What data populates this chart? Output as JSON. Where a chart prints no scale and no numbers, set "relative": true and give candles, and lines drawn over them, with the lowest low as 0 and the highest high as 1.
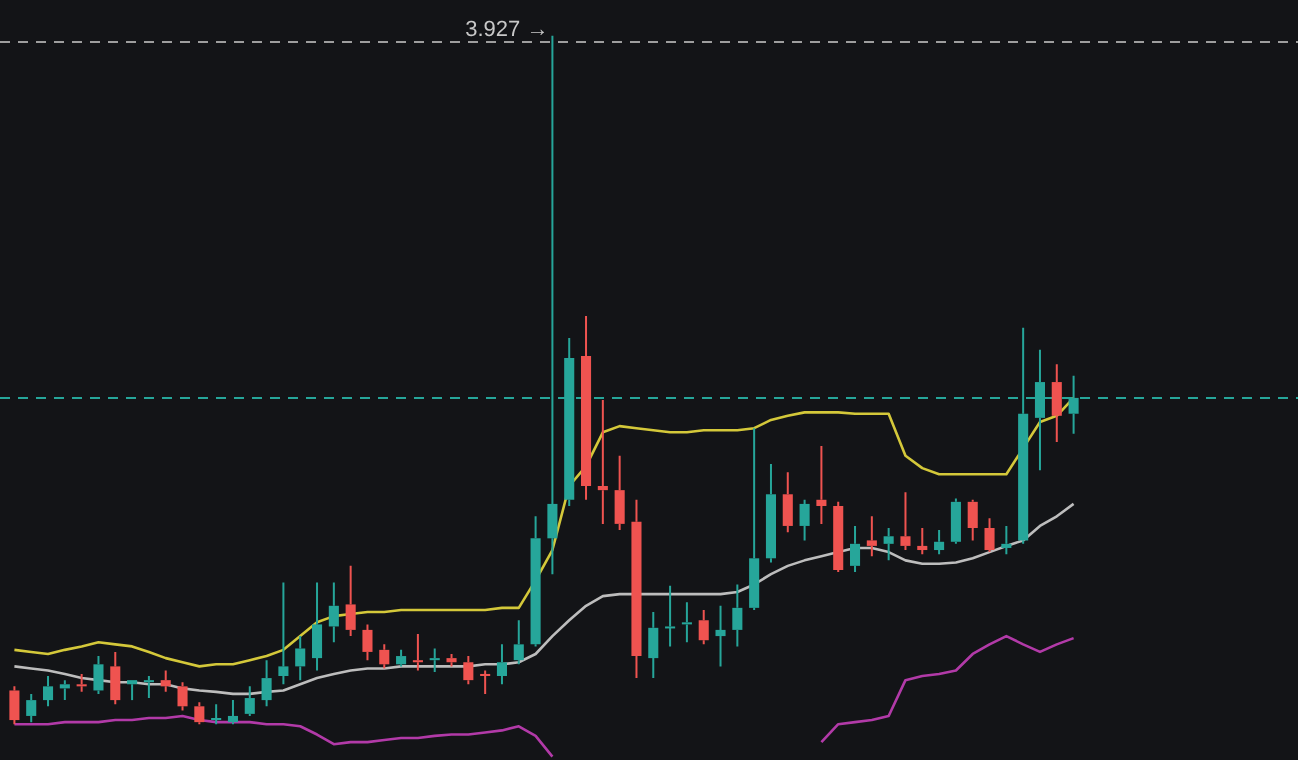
{
  "chart_data": {
    "type": "candlestick",
    "relative": true,
    "categories": [
      null,
      null,
      null,
      null,
      null,
      null,
      null,
      null,
      null,
      null,
      null,
      null,
      null,
      null,
      null,
      null,
      null,
      null,
      null,
      null,
      null,
      null,
      null,
      null,
      null,
      null,
      null,
      null,
      null,
      null,
      null,
      null,
      null,
      null,
      null,
      null,
      null,
      null,
      null,
      null,
      null,
      null,
      null,
      null,
      null,
      null,
      null,
      null,
      null,
      null,
      null,
      null,
      null,
      null,
      null,
      null,
      null,
      null,
      null,
      null,
      null,
      null,
      null,
      null
    ],
    "ohlc": [
      [
        0.049,
        0.055,
        0,
        0.006
      ],
      [
        0.012,
        0.044,
        0.003,
        0.035
      ],
      [
        0.035,
        0.07,
        0.026,
        0.055
      ],
      [
        0.052,
        0.064,
        0.035,
        0.058
      ],
      [
        0.058,
        0.073,
        0.047,
        0.055
      ],
      [
        0.049,
        0.099,
        0.044,
        0.087
      ],
      [
        0.084,
        0.105,
        0.029,
        0.035
      ],
      [
        0.058,
        0.064,
        0.035,
        0.064
      ],
      [
        0.061,
        0.07,
        0.038,
        0.064
      ],
      [
        0.064,
        0.078,
        0.047,
        0.055
      ],
      [
        0.055,
        0.061,
        0.02,
        0.026
      ],
      [
        0.026,
        0.032,
        0,
        0.003
      ],
      [
        0.006,
        0.029,
        0,
        0.009
      ],
      [
        0.003,
        0.035,
        0,
        0.012
      ],
      [
        0.015,
        0.055,
        0.012,
        0.038
      ],
      [
        0.035,
        0.093,
        0.026,
        0.067
      ],
      [
        0.07,
        0.206,
        0.058,
        0.084
      ],
      [
        0.084,
        0.128,
        0.064,
        0.11
      ],
      [
        0.096,
        0.206,
        0.078,
        0.145
      ],
      [
        0.142,
        0.206,
        0.119,
        0.172
      ],
      [
        0.174,
        0.23,
        0.128,
        0.137
      ],
      [
        0.137,
        0.145,
        0.093,
        0.105
      ],
      [
        0.108,
        0.116,
        0.081,
        0.087
      ],
      [
        0.087,
        0.108,
        0.084,
        0.099
      ],
      [
        0.093,
        0.131,
        0.078,
        0.09
      ],
      [
        0.093,
        0.11,
        0.076,
        0.096
      ],
      [
        0.096,
        0.102,
        0.084,
        0.09
      ],
      [
        0.09,
        0.099,
        0.058,
        0.064
      ],
      [
        0.073,
        0.078,
        0.044,
        0.07
      ],
      [
        0.07,
        0.116,
        0.058,
        0.09
      ],
      [
        0.093,
        0.151,
        0.087,
        0.116
      ],
      [
        0.116,
        0.302,
        0.113,
        0.27
      ],
      [
        0.27,
        1,
        0.218,
        0.32
      ],
      [
        0.326,
        0.561,
        0.317,
        0.532
      ],
      [
        0.535,
        0.593,
        0.326,
        0.346
      ],
      [
        0.346,
        0.471,
        0.291,
        0.34
      ],
      [
        0.34,
        0.39,
        0.282,
        0.291
      ],
      [
        0.294,
        0.326,
        0.067,
        0.099
      ],
      [
        0.096,
        0.163,
        0.067,
        0.14
      ],
      [
        0.14,
        0.201,
        0.113,
        0.142
      ],
      [
        0.145,
        0.177,
        0.119,
        0.148
      ],
      [
        0.151,
        0.166,
        0.116,
        0.122
      ],
      [
        0.128,
        0.172,
        0.084,
        0.137
      ],
      [
        0.137,
        0.203,
        0.113,
        0.169
      ],
      [
        0.169,
        0.43,
        0.166,
        0.241
      ],
      [
        0.241,
        0.378,
        0.235,
        0.334
      ],
      [
        0.334,
        0.366,
        0.279,
        0.288
      ],
      [
        0.288,
        0.326,
        0.267,
        0.32
      ],
      [
        0.326,
        0.404,
        0.291,
        0.317
      ],
      [
        0.317,
        0.323,
        0.221,
        0.224
      ],
      [
        0.23,
        0.288,
        0.221,
        0.262
      ],
      [
        0.267,
        0.302,
        0.244,
        0.259
      ],
      [
        0.262,
        0.285,
        0.238,
        0.273
      ],
      [
        0.273,
        0.337,
        0.253,
        0.259
      ],
      [
        0.259,
        0.285,
        0.247,
        0.253
      ],
      [
        0.253,
        0.282,
        0.247,
        0.265
      ],
      [
        0.265,
        0.328,
        0.262,
        0.323
      ],
      [
        0.323,
        0.326,
        0.267,
        0.285
      ],
      [
        0.285,
        0.299,
        0.25,
        0.253
      ],
      [
        0.256,
        0.288,
        0.247,
        0.262
      ],
      [
        0.267,
        0.576,
        0.262,
        0.451
      ],
      [
        0.445,
        0.544,
        0.369,
        0.497
      ],
      [
        0.497,
        0.523,
        0.41,
        0.448
      ],
      [
        0.451,
        0.506,
        0.422,
        0.474
      ]
    ],
    "colors": [
      "#ef5350",
      "#26a69a",
      "#26a69a",
      "#26a69a",
      "#ef5350",
      "#26a69a",
      "#ef5350",
      "#26a69a",
      "#26a69a",
      "#ef5350",
      "#ef5350",
      "#ef5350",
      "#26a69a",
      "#26a69a",
      "#26a69a",
      "#26a69a",
      "#26a69a",
      "#26a69a",
      "#26a69a",
      "#26a69a",
      "#ef5350",
      "#ef5350",
      "#ef5350",
      "#26a69a",
      "#ef5350",
      "#26a69a",
      "#ef5350",
      "#ef5350",
      "#ef5350",
      "#26a69a",
      "#26a69a",
      "#26a69a",
      "#26a69a",
      "#26a69a",
      "#ef5350",
      "#ef5350",
      "#ef5350",
      "#ef5350",
      "#26a69a",
      "#26a69a",
      "#26a69a",
      "#ef5350",
      "#26a69a",
      "#26a69a",
      "#26a69a",
      "#26a69a",
      "#ef5350",
      "#26a69a",
      "#ef5350",
      "#ef5350",
      "#26a69a",
      "#ef5350",
      "#26a69a",
      "#ef5350",
      "#ef5350",
      "#26a69a",
      "#26a69a",
      "#ef5350",
      "#ef5350",
      "#26a69a",
      "#26a69a",
      "#26a69a",
      "#ef5350",
      "#26a69a"
    ],
    "series": [
      {
        "type": "line",
        "color": "#d4c83a",
        "values": [
          0.108,
          0.105,
          0.102,
          0.108,
          0.113,
          0.119,
          0.116,
          0.113,
          0.105,
          0.096,
          0.09,
          0.084,
          0.087,
          0.087,
          0.093,
          0.099,
          0.108,
          0.128,
          0.148,
          0.157,
          0.16,
          0.163,
          0.163,
          0.166,
          0.166,
          0.166,
          0.166,
          0.166,
          0.166,
          0.169,
          0.169,
          0.209,
          0.253,
          0.346,
          0.375,
          0.424,
          0.433,
          0.43,
          0.427,
          0.424,
          0.424,
          0.427,
          0.427,
          0.427,
          0.43,
          0.442,
          0.448,
          0.453,
          0.453,
          0.453,
          0.451,
          0.451,
          0.451,
          0.39,
          0.372,
          0.363,
          0.363,
          0.363,
          0.363,
          0.363,
          0.401,
          0.439,
          0.448,
          0.474
        ]
      },
      {
        "type": "line",
        "color": "#bdbdbd",
        "values": [
          0.084,
          0.081,
          0.078,
          0.073,
          0.067,
          0.064,
          0.061,
          0.061,
          0.058,
          0.058,
          0.052,
          0.049,
          0.047,
          0.044,
          0.044,
          0.047,
          0.049,
          0.058,
          0.067,
          0.073,
          0.078,
          0.081,
          0.081,
          0.084,
          0.084,
          0.084,
          0.084,
          0.084,
          0.087,
          0.087,
          0.09,
          0.102,
          0.128,
          0.151,
          0.172,
          0.186,
          0.189,
          0.189,
          0.189,
          0.189,
          0.189,
          0.189,
          0.189,
          0.192,
          0.203,
          0.218,
          0.23,
          0.238,
          0.244,
          0.25,
          0.256,
          0.256,
          0.25,
          0.238,
          0.233,
          0.233,
          0.235,
          0.241,
          0.25,
          0.259,
          0.267,
          0.288,
          0.302,
          0.32
        ]
      },
      {
        "type": "line",
        "color": "#b23aa8",
        "values": [
          0,
          0,
          0,
          0.003,
          0.003,
          0.003,
          0.006,
          0.006,
          0.009,
          0.009,
          0.012,
          0.006,
          0.003,
          0.003,
          0.003,
          0,
          0,
          -0.003,
          -0.015,
          -0.029,
          -0.026,
          -0.026,
          -0.023,
          -0.02,
          -0.02,
          -0.017,
          -0.015,
          -0.015,
          -0.012,
          -0.009,
          -0.003,
          -0.017,
          -0.047,
          null,
          null,
          null,
          null,
          null,
          null,
          null,
          null,
          null,
          null,
          null,
          null,
          null,
          null,
          null,
          -0.026,
          0,
          0.003,
          0.006,
          0.012,
          0.064,
          0.07,
          0.073,
          0.078,
          0.102,
          0.116,
          0.128,
          0.116,
          0.105,
          0.116,
          0.125
        ]
      }
    ],
    "ref_lines": [
      {
        "axis": "y",
        "value": 0.991,
        "color": "#9e9e9e",
        "line_style": "dashed"
      },
      {
        "axis": "y",
        "value": 0.474,
        "color": "#26a69a",
        "line_style": "dashed"
      }
    ],
    "annotations": [
      "3.927 →"
    ],
    "legend": false
  }
}
